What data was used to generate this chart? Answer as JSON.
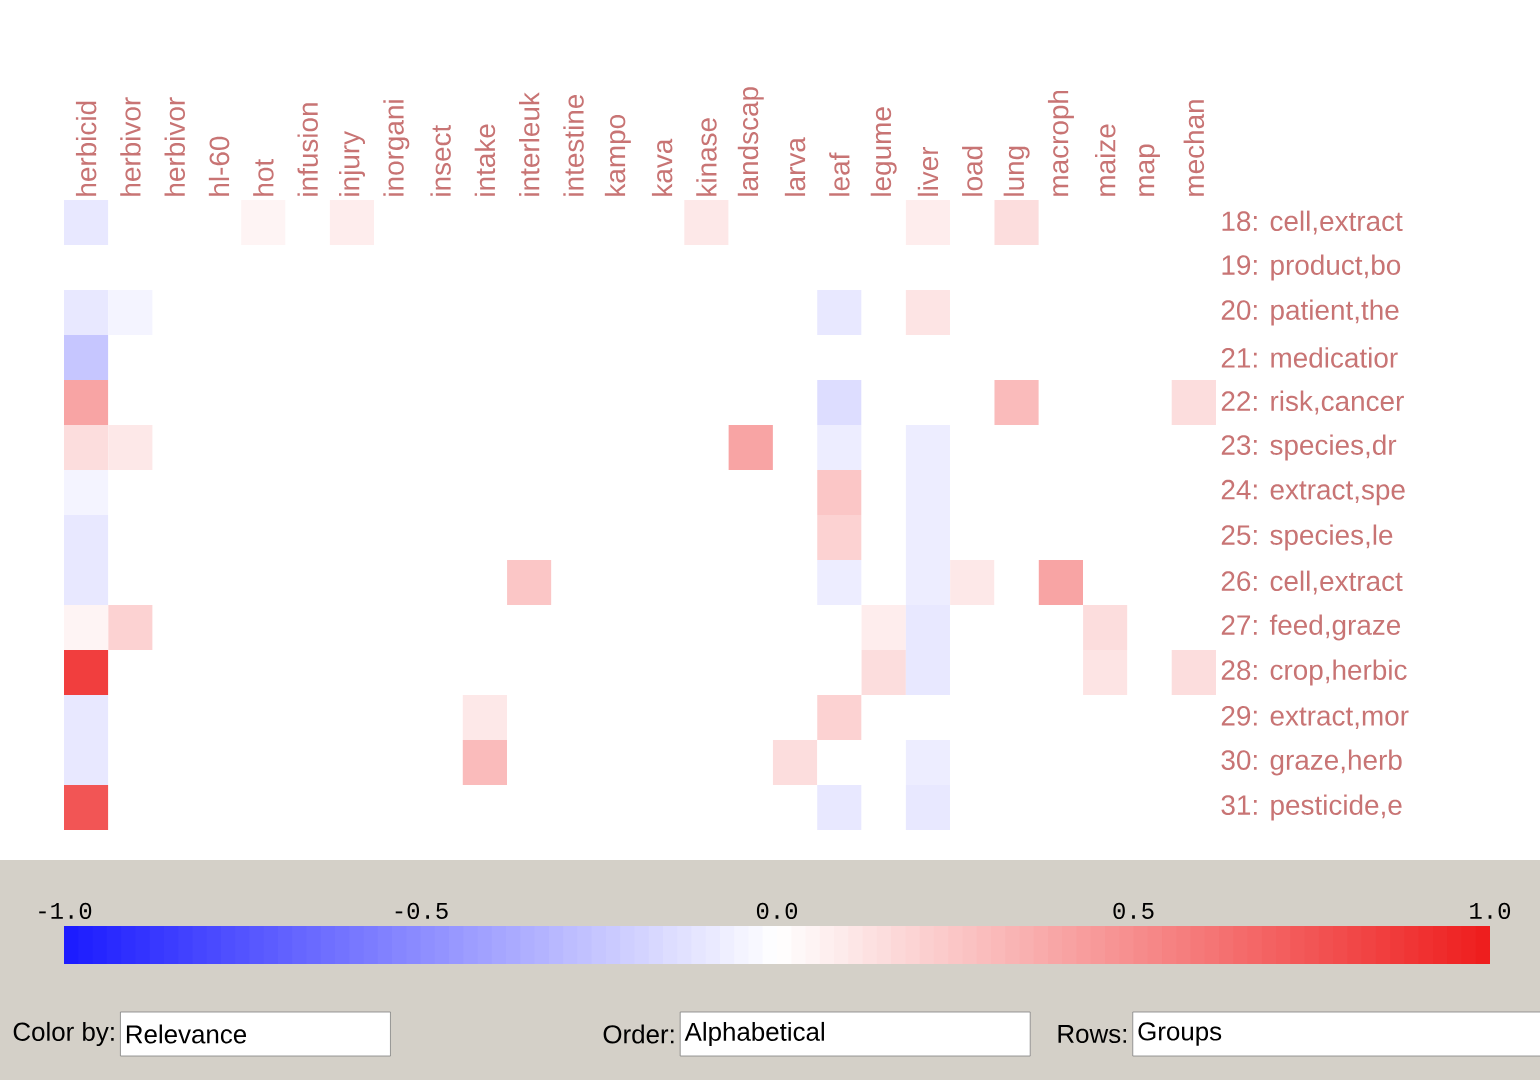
{
  "chart_data": {
    "type": "heatmap",
    "categories": [
      "herbicid",
      "herbivor",
      "herbivor",
      "hl-60",
      "hot",
      "infusion",
      "injury",
      "inorgani",
      "insect",
      "intake",
      "interleuk",
      "intestine",
      "kampo",
      "kava",
      "kinase",
      "landscap",
      "larva",
      "leaf",
      "legume",
      "liver",
      "load",
      "lung",
      "macroph",
      "maize",
      "map",
      "mechan"
    ],
    "y_categories": [
      "18: cell,extract",
      "19: product,bo",
      "20: patient,the",
      "21: medicatior",
      "22: risk,cancer",
      "23: species,dr",
      "24: extract,spe",
      "25: species,le",
      "26: cell,extract",
      "27: feed,graze",
      "28: crop,herbic",
      "29: extract,mor",
      "30: graze,herb",
      "31: pesticide,e"
    ],
    "cells": [
      [
        -0.1,
        0,
        0,
        0,
        0.05,
        0,
        0.08,
        0,
        0,
        0,
        0,
        0,
        0,
        0,
        0.1,
        0,
        0,
        0,
        0,
        0.08,
        0,
        0.15,
        0,
        0,
        0,
        0
      ],
      [
        0,
        0,
        0,
        0,
        0,
        0,
        0,
        0,
        0,
        0,
        0,
        0,
        0,
        0,
        0,
        0,
        0,
        0,
        0,
        0,
        0,
        0,
        0,
        0,
        0,
        0
      ],
      [
        -0.1,
        -0.05,
        0,
        0,
        0,
        0,
        0,
        0,
        0,
        0,
        0,
        0,
        0,
        0,
        0,
        0,
        0,
        -0.1,
        0,
        0.12,
        0,
        0,
        0,
        0,
        0,
        0
      ],
      [
        -0.25,
        0,
        0,
        0,
        0,
        0,
        0,
        0,
        0,
        0,
        0,
        0,
        0,
        0,
        0,
        0,
        0,
        0,
        0,
        0,
        0,
        0,
        0,
        0,
        0,
        0
      ],
      [
        0.4,
        0,
        0,
        0,
        0,
        0,
        0,
        0,
        0,
        0,
        0,
        0,
        0,
        0,
        0,
        0,
        0,
        -0.15,
        0,
        0,
        0,
        0.3,
        0,
        0,
        0,
        0.15
      ],
      [
        0.15,
        0.1,
        0,
        0,
        0,
        0,
        0,
        0,
        0,
        0,
        0,
        0,
        0,
        0,
        0,
        0.4,
        0,
        -0.08,
        0,
        -0.08,
        0,
        0,
        0,
        0,
        0,
        0
      ],
      [
        -0.05,
        0,
        0,
        0,
        0,
        0,
        0,
        0,
        0,
        0,
        0,
        0,
        0,
        0,
        0,
        0,
        0,
        0.25,
        0,
        -0.08,
        0,
        0,
        0,
        0,
        0,
        0
      ],
      [
        -0.1,
        0,
        0,
        0,
        0,
        0,
        0,
        0,
        0,
        0,
        0,
        0,
        0,
        0,
        0,
        0,
        0,
        0.2,
        0,
        -0.08,
        0,
        0,
        0,
        0,
        0,
        0
      ],
      [
        -0.1,
        0,
        0,
        0,
        0,
        0,
        0,
        0,
        0,
        0,
        0.25,
        0,
        0,
        0,
        0,
        0,
        0,
        -0.08,
        0,
        -0.08,
        0.1,
        0,
        0.4,
        0,
        0,
        0
      ],
      [
        0.05,
        0.2,
        0,
        0,
        0,
        0,
        0,
        0,
        0,
        0,
        0,
        0,
        0,
        0,
        0,
        0,
        0,
        0,
        0.08,
        -0.1,
        0,
        0,
        0,
        0.15,
        0,
        0
      ],
      [
        0.85,
        0,
        0,
        0,
        0,
        0,
        0,
        0,
        0,
        0,
        0,
        0,
        0,
        0,
        0,
        0,
        0,
        0,
        0.15,
        -0.1,
        0,
        0,
        0,
        0.12,
        0,
        0.15
      ],
      [
        -0.1,
        0,
        0,
        0,
        0,
        0,
        0,
        0,
        0,
        0.1,
        0,
        0,
        0,
        0,
        0,
        0,
        0,
        0.2,
        0,
        0,
        0,
        0,
        0,
        0,
        0,
        0
      ],
      [
        -0.1,
        0,
        0,
        0,
        0,
        0,
        0,
        0,
        0,
        0.3,
        0,
        0,
        0,
        0,
        0,
        0,
        0.15,
        0,
        0,
        -0.08,
        0,
        0,
        0,
        0,
        0,
        0
      ],
      [
        0.75,
        0,
        0,
        0,
        0,
        0,
        0,
        0,
        0,
        0,
        0,
        0,
        0,
        0,
        0,
        0,
        0,
        -0.1,
        0,
        -0.1,
        0,
        0,
        0,
        0,
        0,
        0
      ]
    ],
    "clim": [
      -1,
      1
    ],
    "cticks": [
      {
        "value": -1,
        "label": "-1.0"
      },
      {
        "value": -0.5,
        "label": "-0.5"
      },
      {
        "value": 0,
        "label": "0.0"
      },
      {
        "value": 0.5,
        "label": "0.5"
      },
      {
        "value": 1,
        "label": "1.0"
      }
    ],
    "annotations": [
      "Color by:",
      "Relevance",
      "Order:",
      "Alphabetical",
      "Rows:",
      "Groups"
    ]
  }
}
